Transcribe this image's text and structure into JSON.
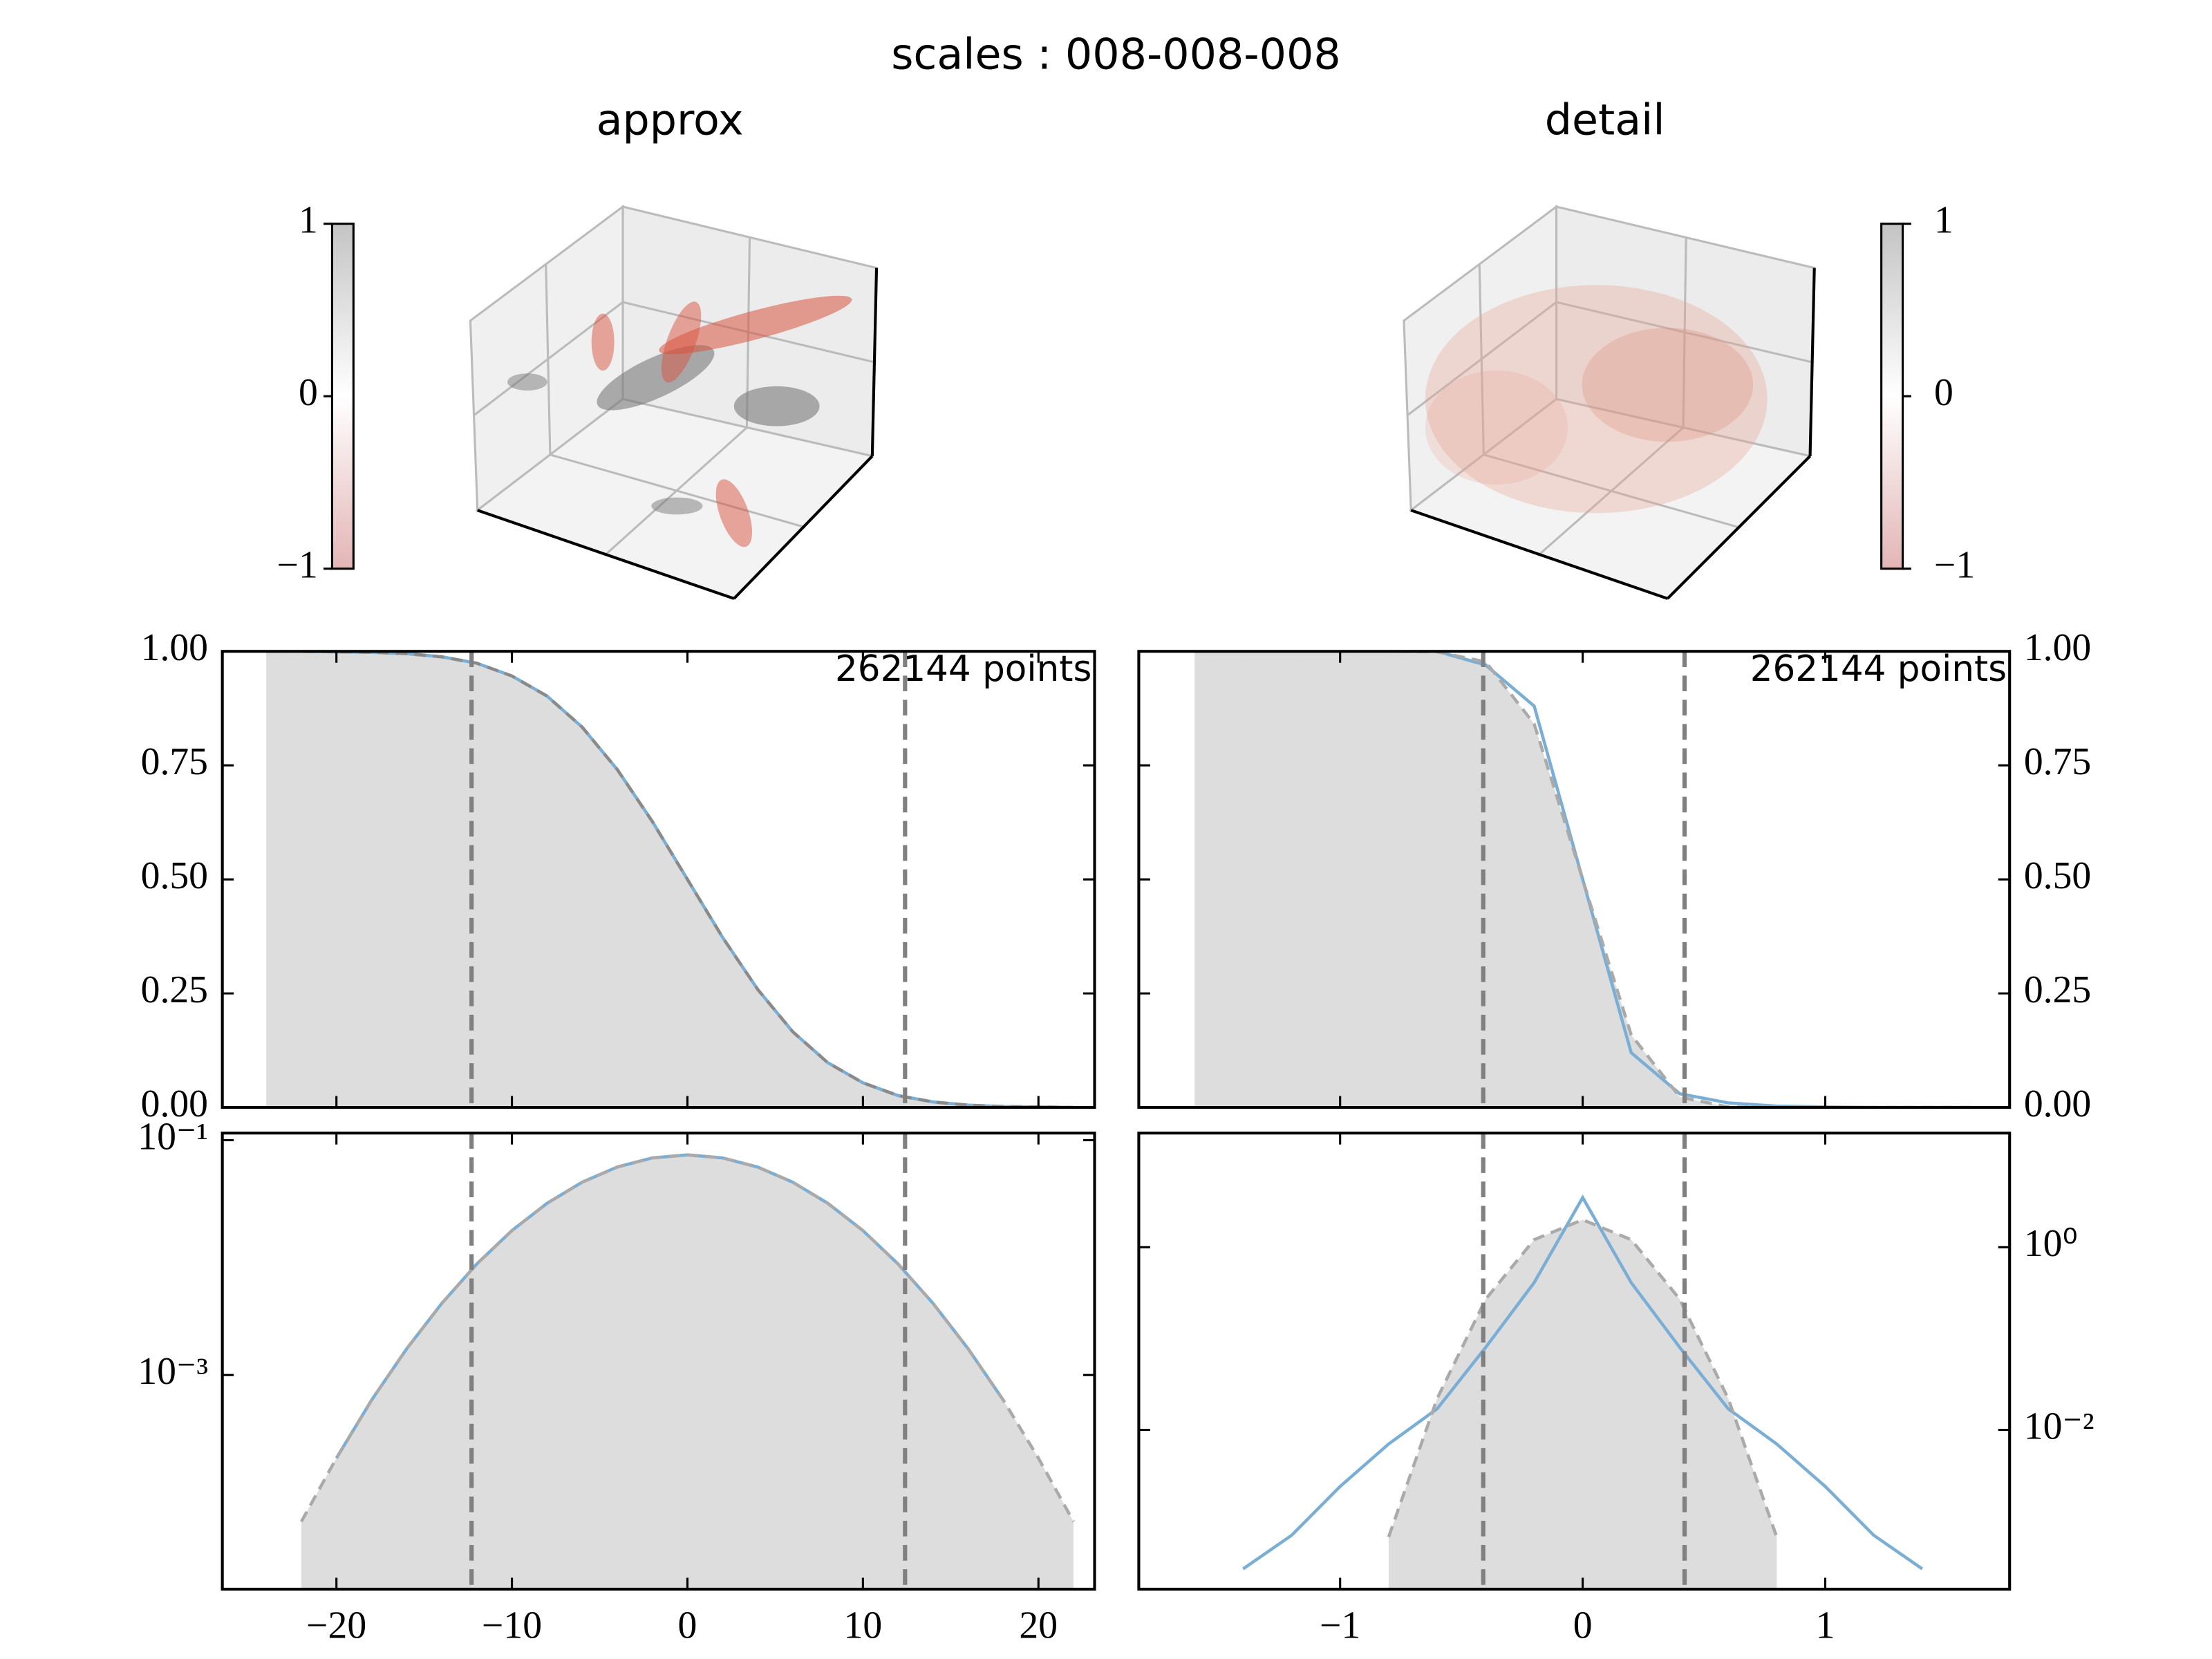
{
  "title": "scales : 008-008-008",
  "chart_data": [
    {
      "type": "scatter3d",
      "title": "approx",
      "colorbar": {
        "lim": [
          -1,
          1
        ],
        "ticks": [
          {
            "value": -1,
            "label": "−1"
          },
          0,
          1
        ],
        "colors": [
          "#e3b5b5",
          "#ffffff",
          "#c4c4c4"
        ]
      }
    },
    {
      "type": "scatter3d",
      "title": "detail",
      "colorbar": {
        "lim": [
          -1,
          1
        ],
        "ticks": [
          {
            "value": -1,
            "label": "−1"
          },
          0,
          1
        ],
        "colors": [
          "#e3b5b5",
          "#ffffff",
          "#c4c4c4"
        ]
      }
    },
    {
      "type": "line",
      "annotation": "262144 points",
      "x": [
        -24,
        -22,
        -20,
        -18,
        -16,
        -14,
        -12,
        -10,
        -8,
        -6,
        -4,
        -2,
        0,
        2,
        4,
        6,
        8,
        10,
        12,
        14,
        16,
        18,
        20,
        22
      ],
      "series": [
        {
          "color": "#7aaed4",
          "values": [
            1.0,
            1.0,
            0.999,
            0.998,
            0.995,
            0.988,
            0.974,
            0.946,
            0.902,
            0.834,
            0.741,
            0.627,
            0.5,
            0.373,
            0.259,
            0.166,
            0.098,
            0.054,
            0.026,
            0.012,
            0.005,
            0.002,
            0.001,
            0.0
          ]
        },
        {
          "color": "#8a8a8a",
          "style": "dashed",
          "fill": "#dddddd",
          "values": [
            1.0,
            1.0,
            0.999,
            0.998,
            0.995,
            0.988,
            0.974,
            0.946,
            0.902,
            0.834,
            0.741,
            0.627,
            0.5,
            0.373,
            0.259,
            0.166,
            0.098,
            0.054,
            0.026,
            0.012,
            0.005,
            0.002,
            0.001,
            0.0
          ]
        }
      ],
      "vlines": [
        -12.3,
        12.4
      ],
      "xlim": [
        -26.5,
        23.2
      ],
      "xticks": [
        -20,
        -10,
        0,
        10,
        20
      ],
      "xtick_labels": false,
      "ylim": [
        0,
        1
      ],
      "yticks": [
        {
          "value": 0,
          "label": "0.00"
        },
        {
          "value": 0.25,
          "label": "0.25"
        },
        {
          "value": 0.5,
          "label": "0.50"
        },
        {
          "value": 0.75,
          "label": "0.75"
        },
        {
          "value": 1,
          "label": "1.00"
        }
      ]
    },
    {
      "type": "line",
      "annotation": "262144 points",
      "yaxis_side": "right",
      "x": [
        -1.6,
        -1.4,
        -1.2,
        -1.0,
        -0.8,
        -0.6,
        -0.4,
        -0.2,
        0,
        0.2,
        0.4,
        0.6,
        0.8,
        1.0,
        1.2,
        1.4,
        1.6
      ],
      "series": [
        {
          "color": "#7aaed4",
          "values": [
            1,
            1,
            1,
            1,
            1,
            1,
            0.97,
            0.88,
            0.5,
            0.12,
            0.03,
            0.01,
            0.003,
            0.001,
            0,
            0,
            0
          ]
        },
        {
          "color": "#aaaaaa",
          "style": "dashed",
          "fill": "#dddddd",
          "values": [
            1,
            1,
            1,
            1,
            1,
            0.999,
            0.977,
            0.841,
            0.5,
            0.159,
            0.023,
            0.001,
            0,
            0,
            0,
            0,
            0
          ]
        }
      ],
      "vlines": [
        -0.41,
        0.42
      ],
      "xlim": [
        -1.83,
        1.76
      ],
      "xticks": [
        -1,
        0,
        1
      ],
      "xtick_labels": false,
      "ylim": [
        0,
        1
      ],
      "yticks": [
        {
          "value": 0,
          "label": "0.00"
        },
        {
          "value": 0.25,
          "label": "0.25"
        },
        {
          "value": 0.5,
          "label": "0.50"
        },
        {
          "value": 0.75,
          "label": "0.75"
        },
        {
          "value": 1,
          "label": "1.00"
        }
      ]
    },
    {
      "type": "line",
      "log_y": true,
      "x": [
        -22,
        -20,
        -18,
        -16,
        -14,
        -12,
        -10,
        -8,
        -6,
        -4,
        -2,
        0,
        2,
        4,
        6,
        8,
        10,
        12,
        14,
        16,
        18,
        20,
        22
      ],
      "series": [
        {
          "color": "#7aaed4",
          "values": [
            null,
            0.000196,
            0.00061,
            0.00167,
            0.00407,
            0.00883,
            0.017,
            0.029,
            0.0439,
            0.0591,
            0.0707,
            0.075,
            0.0707,
            0.0591,
            0.0439,
            0.029,
            0.017,
            0.00883,
            0.00407,
            0.00167,
            0.00061,
            null,
            null
          ]
        },
        {
          "color": "#aaaaaa",
          "style": "dashed",
          "fill": "#dddddd",
          "values": [
            5.64e-05,
            0.000196,
            0.00061,
            0.00167,
            0.00407,
            0.00883,
            0.017,
            0.029,
            0.0439,
            0.0591,
            0.0707,
            0.075,
            0.0707,
            0.0591,
            0.0439,
            0.029,
            0.017,
            0.00883,
            0.00407,
            0.00167,
            0.00061,
            0.000196,
            5.64e-05
          ]
        }
      ],
      "vlines": [
        -12.3,
        12.4
      ],
      "xlim": [
        -26.5,
        23.2
      ],
      "xticks": [
        {
          "value": -20,
          "label": "−20"
        },
        {
          "value": -10,
          "label": "−10"
        },
        0,
        10,
        20
      ],
      "ylim": [
        1.5e-05,
        0.115
      ],
      "yticks": [
        {
          "value": 0.001,
          "label": "10⁻³"
        },
        {
          "value": 0.1,
          "label": "10⁻¹"
        }
      ]
    },
    {
      "type": "line",
      "log_y": true,
      "yaxis_side": "right",
      "x": [
        -1.6,
        -1.4,
        -1.2,
        -1.0,
        -0.8,
        -0.6,
        -0.4,
        -0.2,
        0,
        0.2,
        0.4,
        0.6,
        0.8,
        1.0,
        1.2,
        1.4,
        1.6
      ],
      "series": [
        {
          "color": "#7aaed4",
          "values": [
            null,
            0.0003,
            0.0007,
            0.0024,
            0.007,
            0.017,
            0.08,
            0.41,
            3.5,
            0.41,
            0.08,
            0.017,
            0.007,
            0.0024,
            0.0007,
            0.0003,
            null
          ]
        },
        {
          "color": "#aaaaaa",
          "style": "dashed",
          "fill": "#dddddd",
          "values": [
            null,
            null,
            null,
            null,
            0.00067,
            0.022,
            0.27,
            1.21,
            2.0,
            1.21,
            0.27,
            0.022,
            0.00067,
            null,
            null,
            null,
            null
          ]
        }
      ],
      "vlines": [
        -0.41,
        0.42
      ],
      "xlim": [
        -1.83,
        1.76
      ],
      "xticks": [
        {
          "value": -1,
          "label": "−1"
        },
        0,
        1
      ],
      "ylim": [
        0.00018,
        17.8
      ],
      "yticks": [
        {
          "value": 0.01,
          "label": "10⁻²"
        },
        {
          "value": 1,
          "label": "10⁰"
        }
      ]
    }
  ]
}
